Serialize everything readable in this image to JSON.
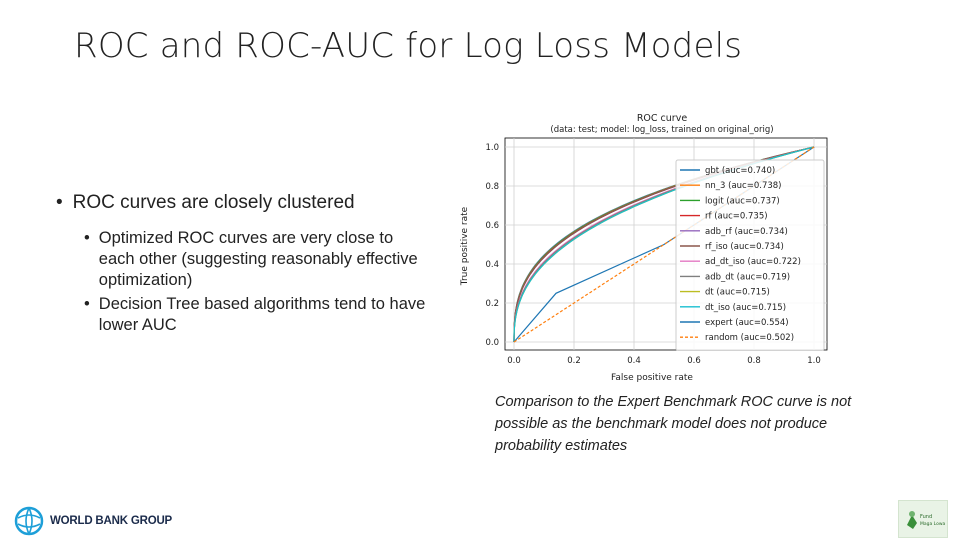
{
  "slide": {
    "title": "ROC and ROC-AUC for Log Loss Models",
    "bullet_main": "ROC curves are closely clustered",
    "sub_bullets": [
      "Optimized ROC curves are very close to each other (suggesting reasonably effective optimization)",
      "Decision Tree based algorithms tend to have lower AUC"
    ],
    "caption": "Comparison to the Expert Benchmark ROC curve is not possible as the benchmark model does not produce probability estimates",
    "logo_text": "WORLD BANK GROUP",
    "logo_right_text": "Fund Maga Lowa"
  },
  "chart_data": {
    "type": "line",
    "title": "ROC curve",
    "subtitle": "(data: test; model: log_loss, trained on original_orig)",
    "xlabel": "False positive rate",
    "ylabel": "True positive rate",
    "xlim": [
      0,
      1
    ],
    "ylim": [
      0,
      1
    ],
    "xticks": [
      "0.0",
      "0.2",
      "0.4",
      "0.6",
      "0.8",
      "1.0"
    ],
    "yticks": [
      "0.0",
      "0.2",
      "0.4",
      "0.6",
      "0.8",
      "1.0"
    ],
    "grid": true,
    "legend_position": "right",
    "series": [
      {
        "name": "gbt (auc=0.740)",
        "color": "#1f77b4",
        "auc": 0.74
      },
      {
        "name": "nn_3 (auc=0.738)",
        "color": "#ff7f0e",
        "auc": 0.738
      },
      {
        "name": "logit (auc=0.737)",
        "color": "#2ca02c",
        "auc": 0.737
      },
      {
        "name": "rf (auc=0.735)",
        "color": "#d62728",
        "auc": 0.735
      },
      {
        "name": "adb_rf (auc=0.734)",
        "color": "#9467bd",
        "auc": 0.734
      },
      {
        "name": "rf_iso (auc=0.734)",
        "color": "#8c564b",
        "auc": 0.734
      },
      {
        "name": "ad_dt_iso (auc=0.722)",
        "color": "#e377c2",
        "auc": 0.722
      },
      {
        "name": "adb_dt (auc=0.719)",
        "color": "#7f7f7f",
        "auc": 0.719
      },
      {
        "name": "dt (auc=0.715)",
        "color": "#bcbd22",
        "auc": 0.715
      },
      {
        "name": "dt_iso (auc=0.715)",
        "color": "#17becf",
        "auc": 0.715
      },
      {
        "name": "expert (auc=0.554)",
        "color": "#1f77b4",
        "auc": 0.554,
        "x": [
          0,
          0.14,
          0.5,
          1.0
        ],
        "y": [
          0,
          0.25,
          0.5,
          1.0
        ]
      },
      {
        "name": "random (auc=0.502)",
        "color": "#ff7f0e",
        "auc": 0.502,
        "x": [
          0,
          1.0
        ],
        "y": [
          0,
          1.0
        ],
        "dashed": true
      }
    ]
  }
}
